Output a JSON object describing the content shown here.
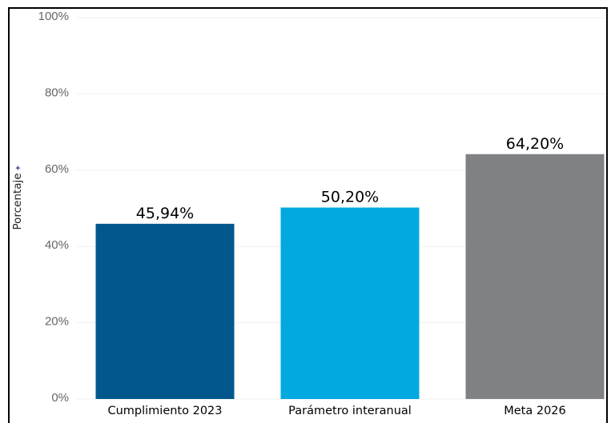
{
  "chart_data": {
    "type": "bar",
    "categories": [
      "Cumplimiento 2023",
      "Parámetro interanual",
      "Meta 2026"
    ],
    "values": [
      45.94,
      50.2,
      64.2
    ],
    "value_labels": [
      "45,94%",
      "50,20%",
      "64,20%"
    ],
    "colors": [
      "#02578d",
      "#02a9e0",
      "#808184"
    ],
    "ylabel": "Porcentaje",
    "ylabel_marker": "✦",
    "ylim": [
      0,
      100
    ],
    "yticks": [
      0,
      20,
      40,
      60,
      80,
      100
    ],
    "ytick_labels": [
      "0%",
      "20%",
      "40%",
      "60%",
      "80%",
      "100%"
    ],
    "grid": true,
    "legend": "none"
  }
}
